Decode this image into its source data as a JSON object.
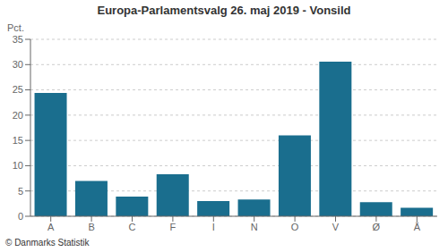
{
  "chart_data": {
    "type": "bar",
    "title": "Europa-Parlamentsvalg 26. maj 2019 - Vonsild",
    "categories": [
      "A",
      "B",
      "C",
      "F",
      "I",
      "N",
      "O",
      "V",
      "Ø",
      "Å"
    ],
    "values": [
      24.4,
      7.0,
      3.9,
      8.3,
      3.0,
      3.3,
      16.0,
      30.6,
      2.8,
      1.7
    ],
    "color": "#1a6e8e",
    "ylabel": "Pct.",
    "ylim": [
      0,
      35
    ],
    "yticks": [
      0,
      5,
      10,
      15,
      20,
      25,
      30,
      35
    ],
    "grid": true,
    "footer": "© Danmarks Statistik"
  }
}
